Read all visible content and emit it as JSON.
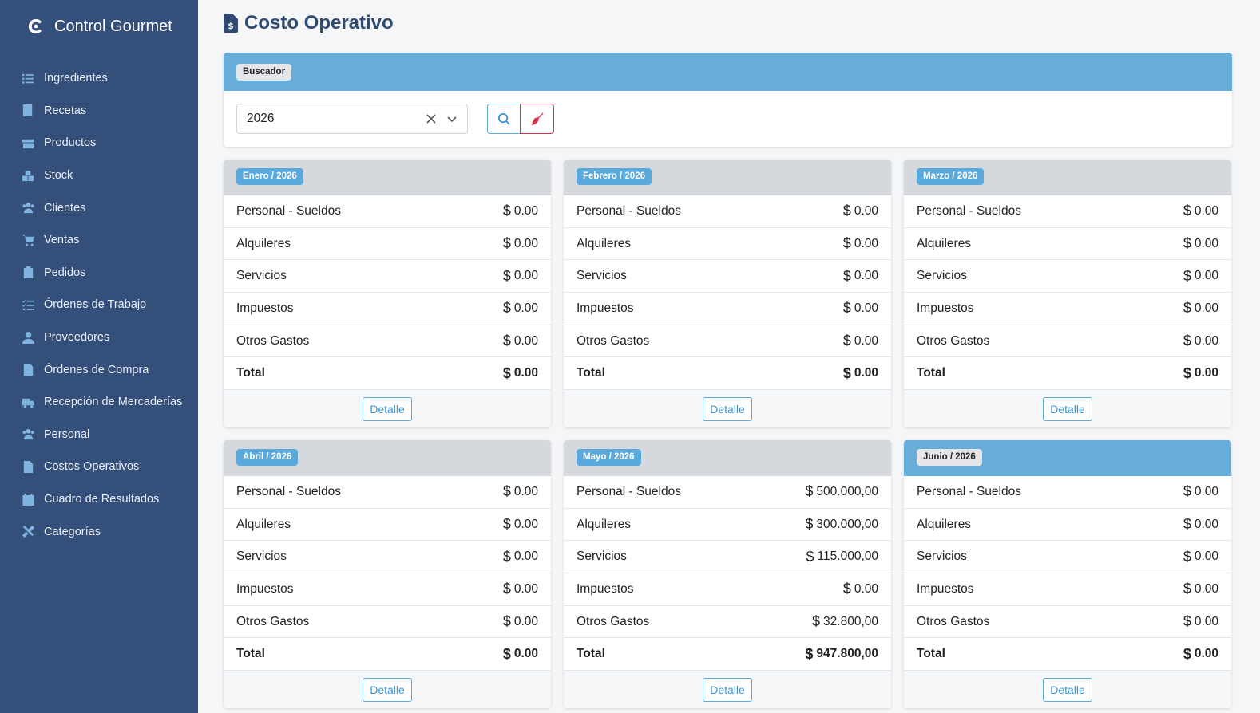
{
  "app": {
    "title": "Control Gourmet"
  },
  "sidebar": {
    "items": [
      {
        "label": "Ingredientes",
        "icon": "list-icon"
      },
      {
        "label": "Recetas",
        "icon": "book-icon"
      },
      {
        "label": "Productos",
        "icon": "box-icon"
      },
      {
        "label": "Stock",
        "icon": "boxes-icon"
      },
      {
        "label": "Clientes",
        "icon": "users-icon"
      },
      {
        "label": "Ventas",
        "icon": "cart-icon"
      },
      {
        "label": "Pedidos",
        "icon": "clipboard-icon"
      },
      {
        "label": "Órdenes de Trabajo",
        "icon": "tasks-icon"
      },
      {
        "label": "Proveedores",
        "icon": "user-tie-icon"
      },
      {
        "label": "Órdenes de Compra",
        "icon": "file-icon"
      },
      {
        "label": "Recepción de Mercaderías",
        "icon": "truck-icon"
      },
      {
        "label": "Personal",
        "icon": "users-icon"
      },
      {
        "label": "Costos Operativos",
        "icon": "file-invoice-dollar-icon"
      },
      {
        "label": "Cuadro de Resultados",
        "icon": "calendar-icon"
      },
      {
        "label": "Categorías",
        "icon": "tools-icon"
      }
    ]
  },
  "page": {
    "title": "Costo Operativo"
  },
  "search": {
    "badge": "Buscador",
    "year": "2026"
  },
  "months": [
    {
      "label": "Enero / 2026",
      "active": false,
      "rows": [
        {
          "label": "Personal - Sueldos",
          "amount": "0.00"
        },
        {
          "label": "Alquileres",
          "amount": "0.00"
        },
        {
          "label": "Servicios",
          "amount": "0.00"
        },
        {
          "label": "Impuestos",
          "amount": "0.00"
        },
        {
          "label": "Otros Gastos",
          "amount": "0.00"
        }
      ],
      "total_label": "Total",
      "total": "0.00",
      "detail_label": "Detalle"
    },
    {
      "label": "Febrero / 2026",
      "active": false,
      "rows": [
        {
          "label": "Personal - Sueldos",
          "amount": "0.00"
        },
        {
          "label": "Alquileres",
          "amount": "0.00"
        },
        {
          "label": "Servicios",
          "amount": "0.00"
        },
        {
          "label": "Impuestos",
          "amount": "0.00"
        },
        {
          "label": "Otros Gastos",
          "amount": "0.00"
        }
      ],
      "total_label": "Total",
      "total": "0.00",
      "detail_label": "Detalle"
    },
    {
      "label": "Marzo / 2026",
      "active": false,
      "rows": [
        {
          "label": "Personal - Sueldos",
          "amount": "0.00"
        },
        {
          "label": "Alquileres",
          "amount": "0.00"
        },
        {
          "label": "Servicios",
          "amount": "0.00"
        },
        {
          "label": "Impuestos",
          "amount": "0.00"
        },
        {
          "label": "Otros Gastos",
          "amount": "0.00"
        }
      ],
      "total_label": "Total",
      "total": "0.00",
      "detail_label": "Detalle"
    },
    {
      "label": "Abril / 2026",
      "active": false,
      "rows": [
        {
          "label": "Personal - Sueldos",
          "amount": "0.00"
        },
        {
          "label": "Alquileres",
          "amount": "0.00"
        },
        {
          "label": "Servicios",
          "amount": "0.00"
        },
        {
          "label": "Impuestos",
          "amount": "0.00"
        },
        {
          "label": "Otros Gastos",
          "amount": "0.00"
        }
      ],
      "total_label": "Total",
      "total": "0.00",
      "detail_label": "Detalle"
    },
    {
      "label": "Mayo / 2026",
      "active": false,
      "rows": [
        {
          "label": "Personal - Sueldos",
          "amount": "500.000,00"
        },
        {
          "label": "Alquileres",
          "amount": "300.000,00"
        },
        {
          "label": "Servicios",
          "amount": "115.000,00"
        },
        {
          "label": "Impuestos",
          "amount": "0.00"
        },
        {
          "label": "Otros Gastos",
          "amount": "32.800,00"
        }
      ],
      "total_label": "Total",
      "total": "947.800,00",
      "detail_label": "Detalle"
    },
    {
      "label": "Junio / 2026",
      "active": true,
      "rows": [
        {
          "label": "Personal - Sueldos",
          "amount": "0.00"
        },
        {
          "label": "Alquileres",
          "amount": "0.00"
        },
        {
          "label": "Servicios",
          "amount": "0.00"
        },
        {
          "label": "Impuestos",
          "amount": "0.00"
        },
        {
          "label": "Otros Gastos",
          "amount": "0.00"
        }
      ],
      "total_label": "Total",
      "total": "0.00",
      "detail_label": "Detalle"
    }
  ],
  "currency_symbol": "$",
  "colors": {
    "sidebar": "#344f7a",
    "accent": "#66aed9",
    "danger": "#d9334a"
  }
}
